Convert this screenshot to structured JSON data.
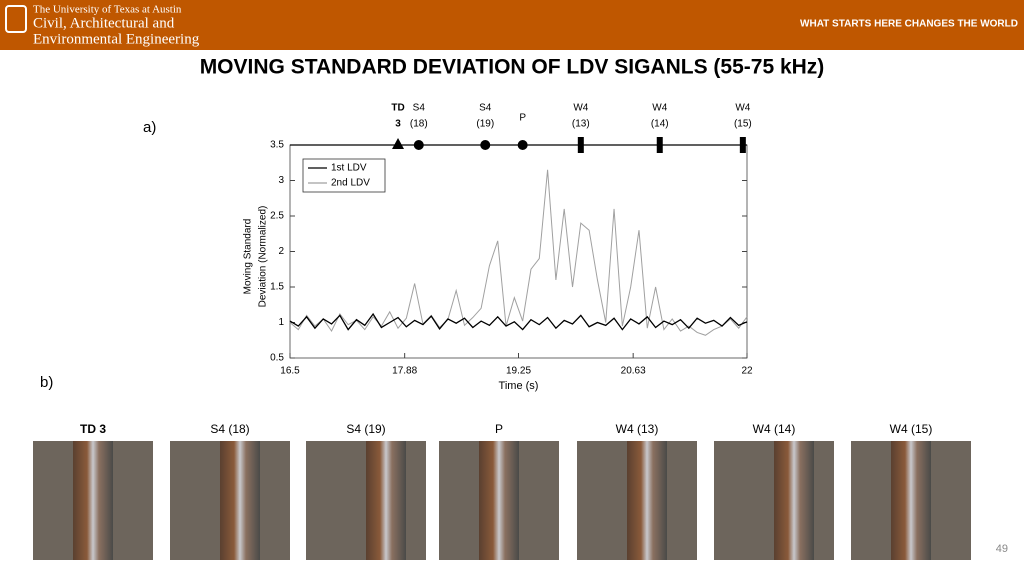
{
  "header": {
    "university": "The University of Texas at Austin",
    "department_lines": [
      "Civil, Architectural and",
      "Environmental Engineering"
    ],
    "tagline": "WHAT STARTS HERE CHANGES THE WORLD"
  },
  "title": "MOVING STANDARD DEVIATION OF LDV SIGANLS (55-75 kHz)",
  "panel_labels": [
    "a)",
    "b)"
  ],
  "photos": {
    "captions": [
      "TD 3",
      "S4 (18)",
      "S4 (19)",
      "P",
      "W4 (13)",
      "W4 (14)",
      "W4 (15)"
    ]
  },
  "page_number": "49",
  "chart_data": {
    "type": "line",
    "x_label": "Time (s)",
    "y_label_lines": [
      "Moving Standard",
      "Deviation (Normalized)"
    ],
    "xlim": [
      16.5,
      22
    ],
    "xticks": [
      16.5,
      17.88,
      19.25,
      20.63,
      22
    ],
    "ylim": [
      0.5,
      3.5
    ],
    "yticks": [
      0.5,
      1,
      1.5,
      2,
      2.5,
      3,
      3.5
    ],
    "legend": "upper left",
    "x": [
      16.5,
      16.6,
      16.7,
      16.8,
      16.9,
      17.0,
      17.1,
      17.2,
      17.3,
      17.4,
      17.5,
      17.6,
      17.7,
      17.8,
      17.9,
      18.0,
      18.1,
      18.2,
      18.3,
      18.4,
      18.5,
      18.6,
      18.7,
      18.8,
      18.9,
      19.0,
      19.1,
      19.2,
      19.3,
      19.4,
      19.5,
      19.6,
      19.7,
      19.8,
      19.9,
      20.0,
      20.1,
      20.2,
      20.3,
      20.4,
      20.5,
      20.6,
      20.7,
      20.8,
      20.9,
      21.0,
      21.1,
      21.2,
      21.3,
      21.4,
      21.5,
      21.6,
      21.7,
      21.8,
      21.9,
      22.0
    ],
    "series": [
      {
        "name": "1st LDV",
        "color": "#000000",
        "values": [
          1.02,
          0.95,
          1.08,
          0.92,
          1.05,
          0.98,
          1.1,
          0.9,
          1.04,
          0.96,
          1.12,
          0.93,
          1.0,
          1.07,
          0.94,
          1.03,
          0.97,
          1.09,
          0.91,
          1.05,
          0.99,
          1.06,
          0.93,
          1.02,
          0.96,
          1.08,
          0.95,
          1.01,
          0.9,
          1.04,
          0.97,
          1.07,
          0.92,
          1.03,
          0.98,
          1.1,
          0.94,
          1.0,
          0.96,
          1.06,
          0.9,
          1.05,
          0.98,
          1.08,
          0.93,
          1.02,
          0.97,
          1.04,
          0.92,
          1.06,
          0.99,
          1.03,
          0.95,
          1.07,
          0.96,
          1.01
        ]
      },
      {
        "name": "2nd LDV",
        "color": "#a0a0a0",
        "values": [
          1.0,
          0.9,
          1.1,
          0.95,
          1.05,
          0.88,
          1.12,
          0.97,
          1.03,
          0.9,
          1.08,
          0.95,
          1.15,
          0.92,
          1.06,
          1.55,
          0.98,
          1.1,
          0.93,
          1.04,
          1.45,
          0.96,
          1.07,
          1.2,
          1.8,
          2.15,
          0.95,
          1.35,
          1.02,
          1.75,
          1.9,
          3.15,
          1.6,
          2.6,
          1.5,
          2.4,
          2.3,
          1.6,
          1.0,
          2.6,
          0.95,
          1.5,
          2.3,
          0.92,
          1.5,
          0.9,
          1.05,
          0.88,
          0.95,
          0.86,
          0.82,
          0.9,
          0.95,
          1.05,
          0.92,
          1.08
        ]
      }
    ],
    "events": [
      {
        "x": 17.8,
        "marker": "triangle",
        "label_lines": [
          "TD",
          "3"
        ]
      },
      {
        "x": 18.05,
        "marker": "circle",
        "label_lines": [
          "S4",
          "(18)"
        ]
      },
      {
        "x": 18.85,
        "marker": "circle",
        "label_lines": [
          "S4",
          "(19)"
        ]
      },
      {
        "x": 19.3,
        "marker": "circle",
        "label_lines": [
          "P"
        ]
      },
      {
        "x": 20.0,
        "marker": "bar",
        "label_lines": [
          "W4",
          "(13)"
        ]
      },
      {
        "x": 20.95,
        "marker": "bar",
        "label_lines": [
          "W4",
          "(14)"
        ]
      },
      {
        "x": 21.95,
        "marker": "bar",
        "label_lines": [
          "W4",
          "(15)"
        ]
      }
    ]
  }
}
